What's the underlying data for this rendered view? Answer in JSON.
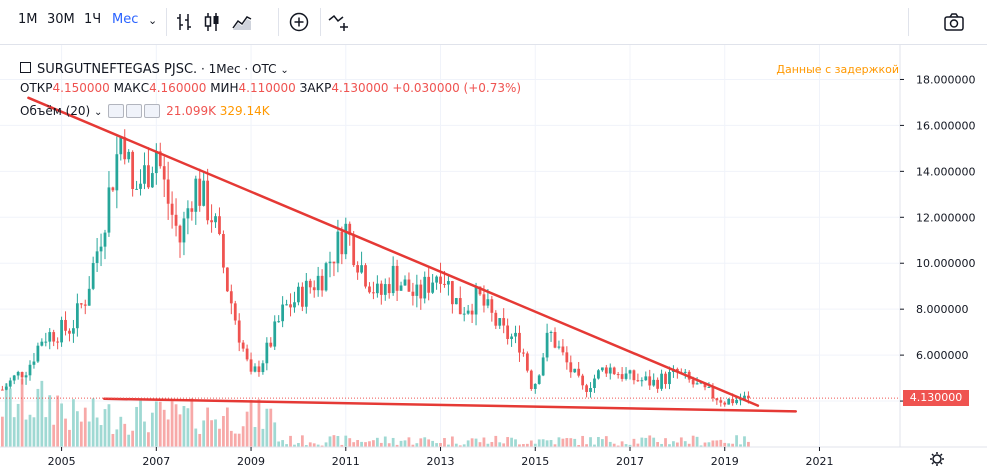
{
  "toolbar": {
    "intervals": [
      "1М",
      "30М",
      "1Ч",
      "Мес"
    ],
    "active_interval": "Мес"
  },
  "legend": {
    "symbol": "SURGUTNEFTEGAS PJSC.",
    "interval": "1Мес",
    "exchange": "OTC",
    "open_label": "ОТКР",
    "open": "4.150000",
    "high_label": "МАКС",
    "high": "4.160000",
    "low_label": "МИН",
    "low": "4.110000",
    "close_label": "ЗАКР",
    "close": "4.130000",
    "change": "+0.030000 (+0.73%)",
    "volume_label": "Объём (20)",
    "volume_value": "21.099K",
    "volume_ma": "329.14K"
  },
  "delayed_text": "Данные с задержкой",
  "price_tag": "4.130000",
  "colors": {
    "up": "#26a69a",
    "down": "#ef5350",
    "trendline": "#e53935",
    "vol_up": "#9fd9d3",
    "vol_down": "#f7a9a8"
  },
  "chart_data": {
    "type": "candlestick",
    "y_ticks": [
      "18.000000",
      "16.000000",
      "14.000000",
      "12.000000",
      "10.000000",
      "8.000000",
      "6.000000",
      "4.000000"
    ],
    "x_ticks": [
      "2005",
      "2007",
      "2009",
      "2011",
      "2013",
      "2015",
      "2017",
      "2019",
      "2021"
    ],
    "ylim": [
      2.0,
      19.5
    ],
    "xlim": [
      2003.7,
      2022.7
    ],
    "last_price": 4.13,
    "anchors": [
      [
        2003.75,
        4.5
      ],
      [
        2004.0,
        5.0
      ],
      [
        2004.3,
        5.5
      ],
      [
        2004.6,
        6.8
      ],
      [
        2004.9,
        7.0
      ],
      [
        2005.2,
        7.2
      ],
      [
        2005.5,
        8.5
      ],
      [
        2005.8,
        11.0
      ],
      [
        2006.0,
        13.0
      ],
      [
        2006.3,
        16.0
      ],
      [
        2006.5,
        13.0
      ],
      [
        2006.8,
        14.0
      ],
      [
        2007.0,
        15.0
      ],
      [
        2007.2,
        13.0
      ],
      [
        2007.5,
        11.0
      ],
      [
        2007.8,
        13.5
      ],
      [
        2008.2,
        12.0
      ],
      [
        2008.5,
        9.0
      ],
      [
        2008.8,
        6.5
      ],
      [
        2009.0,
        5.0
      ],
      [
        2009.3,
        6.0
      ],
      [
        2009.7,
        8.0
      ],
      [
        2010.0,
        8.5
      ],
      [
        2010.5,
        9.5
      ],
      [
        2011.0,
        11.5
      ],
      [
        2011.3,
        10.0
      ],
      [
        2011.7,
        8.5
      ],
      [
        2012.0,
        9.5
      ],
      [
        2012.5,
        8.5
      ],
      [
        2013.0,
        9.8
      ],
      [
        2013.4,
        8.0
      ],
      [
        2013.8,
        8.5
      ],
      [
        2014.3,
        7.0
      ],
      [
        2014.7,
        6.5
      ],
      [
        2014.95,
        4.5
      ],
      [
        2015.3,
        7.0
      ],
      [
        2015.7,
        5.5
      ],
      [
        2016.0,
        4.5
      ],
      [
        2016.5,
        5.5
      ],
      [
        2017.0,
        5.0
      ],
      [
        2017.5,
        4.8
      ],
      [
        2018.0,
        5.2
      ],
      [
        2018.5,
        4.5
      ],
      [
        2019.0,
        4.0
      ],
      [
        2019.5,
        4.13
      ]
    ],
    "trendlines": [
      {
        "x": [
          2004.3,
          2019.7
        ],
        "y": [
          17.2,
          3.8
        ]
      },
      {
        "x": [
          2005.9,
          2020.5
        ],
        "y": [
          4.1,
          3.55
        ]
      }
    ]
  }
}
